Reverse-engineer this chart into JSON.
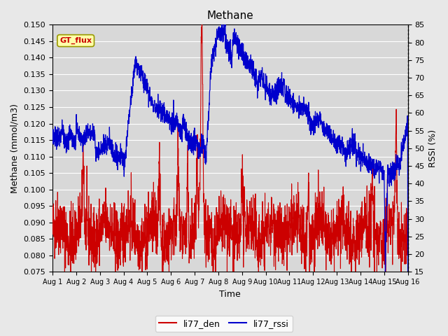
{
  "title": "Methane",
  "xlabel": "Time",
  "ylabel_left": "Methane (mmol/m3)",
  "ylabel_right": "RSSI (%)",
  "ylim_left": [
    0.075,
    0.15
  ],
  "ylim_right": [
    15,
    85
  ],
  "yticks_left": [
    0.075,
    0.08,
    0.085,
    0.09,
    0.095,
    0.1,
    0.105,
    0.11,
    0.115,
    0.12,
    0.125,
    0.13,
    0.135,
    0.14,
    0.145,
    0.15
  ],
  "yticks_right": [
    15,
    20,
    25,
    30,
    35,
    40,
    45,
    50,
    55,
    60,
    65,
    70,
    75,
    80,
    85
  ],
  "xtick_labels": [
    "Aug 1",
    "Aug 2",
    "Aug 3",
    "Aug 4",
    "Aug 5",
    "Aug 6",
    "Aug 7",
    "Aug 8",
    "Aug 9",
    "Aug 10",
    "Aug 11",
    "Aug 12",
    "Aug 13",
    "Aug 14",
    "Aug 15",
    "Aug 16"
  ],
  "color_red": "#cc0000",
  "color_blue": "#0000cc",
  "bg_color": "#e8e8e8",
  "plot_bg_color": "#d8d8d8",
  "legend_label_red": "li77_den",
  "legend_label_blue": "li77_rssi",
  "gt_flux_box_color": "#ffffaa",
  "gt_flux_text_color": "#cc0000",
  "n_days": 15
}
